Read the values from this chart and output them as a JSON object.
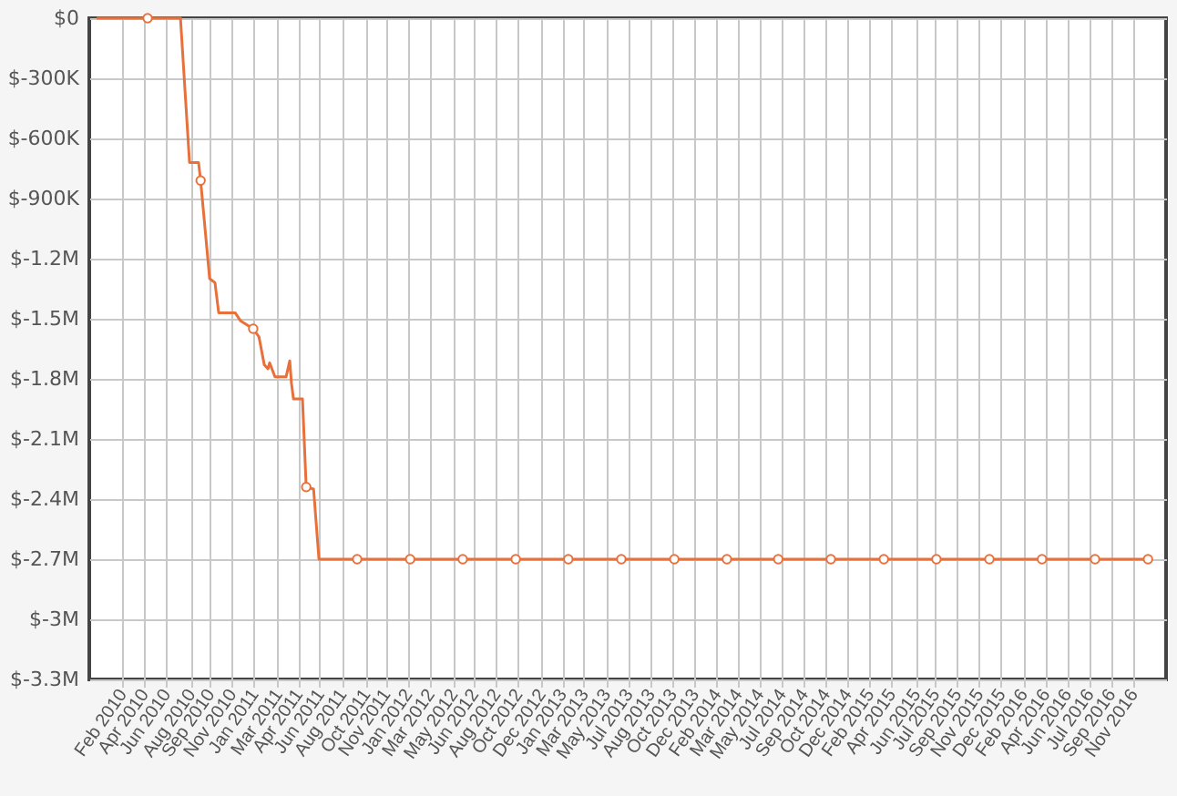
{
  "chart_data": {
    "type": "line",
    "xlim": [
      "2009-11-27",
      "2017-01-30"
    ],
    "xticks": [
      {
        "value": "2010-02-15",
        "label": "Feb 2010"
      },
      {
        "value": "2010-04-09",
        "label": "Apr 2010"
      },
      {
        "value": "2010-06-02",
        "label": "Jun 2010"
      },
      {
        "value": "2010-08-01",
        "label": "Aug 2010"
      },
      {
        "value": "2010-09-17",
        "label": "Sep 2010"
      },
      {
        "value": "2010-11-09",
        "label": "Nov 2010"
      },
      {
        "value": "2011-01-02",
        "label": "Jan 2011"
      },
      {
        "value": "2011-03-01",
        "label": "Mar 2011"
      },
      {
        "value": "2011-04-19",
        "label": "Apr 2011"
      },
      {
        "value": "2011-06-11",
        "label": "Jun 2011"
      },
      {
        "value": "2011-08-04",
        "label": "Aug 2011"
      },
      {
        "value": "2011-10-01",
        "label": "Oct 2011"
      },
      {
        "value": "2011-11-19",
        "label": "Nov 2011"
      },
      {
        "value": "2012-01-11",
        "label": "Jan 2012"
      },
      {
        "value": "2012-03-05",
        "label": "Mar 2012"
      },
      {
        "value": "2012-05-01",
        "label": "May 2012"
      },
      {
        "value": "2012-06-20",
        "label": "Jun 2012"
      },
      {
        "value": "2012-08-13",
        "label": "Aug 2012"
      },
      {
        "value": "2012-10-05",
        "label": "Oct 2012"
      },
      {
        "value": "2012-12-01",
        "label": "Dec 2012"
      },
      {
        "value": "2013-01-21",
        "label": "Jan 2013"
      },
      {
        "value": "2013-03-15",
        "label": "Mar 2013"
      },
      {
        "value": "2013-05-08",
        "label": "May 2013"
      },
      {
        "value": "2013-07-01",
        "label": "Jul 2013"
      },
      {
        "value": "2013-08-24",
        "label": "Aug 2013"
      },
      {
        "value": "2013-10-16",
        "label": "Oct 2013"
      },
      {
        "value": "2013-12-09",
        "label": "Dec 2013"
      },
      {
        "value": "2014-02-01",
        "label": "Feb 2014"
      },
      {
        "value": "2014-03-24",
        "label": "Mar 2014"
      },
      {
        "value": "2014-05-16",
        "label": "May 2014"
      },
      {
        "value": "2014-07-09",
        "label": "Jul 2014"
      },
      {
        "value": "2014-09-01",
        "label": "Sep 2014"
      },
      {
        "value": "2014-10-24",
        "label": "Oct 2014"
      },
      {
        "value": "2014-12-16",
        "label": "Dec 2014"
      },
      {
        "value": "2015-02-08",
        "label": "Feb 2015"
      },
      {
        "value": "2015-04-02",
        "label": "Apr 2015"
      },
      {
        "value": "2015-06-01",
        "label": "Jun 2015"
      },
      {
        "value": "2015-07-18",
        "label": "Jul 2015"
      },
      {
        "value": "2015-09-09",
        "label": "Sep 2015"
      },
      {
        "value": "2015-11-01",
        "label": "Nov 2015"
      },
      {
        "value": "2015-12-25",
        "label": "Dec 2015"
      },
      {
        "value": "2016-02-17",
        "label": "Feb 2016"
      },
      {
        "value": "2016-04-11",
        "label": "Apr 2016"
      },
      {
        "value": "2016-06-03",
        "label": "Jun 2016"
      },
      {
        "value": "2016-07-27",
        "label": "Jul 2016"
      },
      {
        "value": "2016-09-18",
        "label": "Sep 2016"
      },
      {
        "value": "2016-11-11",
        "label": "Nov 2016"
      }
    ],
    "ylim": [
      -3300000,
      0
    ],
    "yticks": [
      {
        "value": 0,
        "label": "$0"
      },
      {
        "value": -300000,
        "label": "$-300K"
      },
      {
        "value": -600000,
        "label": "$-600K"
      },
      {
        "value": -900000,
        "label": "$-900K"
      },
      {
        "value": -1200000,
        "label": "$-1.2M"
      },
      {
        "value": -1500000,
        "label": "$-1.5M"
      },
      {
        "value": -1800000,
        "label": "$-1.8M"
      },
      {
        "value": -2100000,
        "label": "$-2.1M"
      },
      {
        "value": -2400000,
        "label": "$-2.4M"
      },
      {
        "value": -2700000,
        "label": "$-2.7M"
      },
      {
        "value": -3000000,
        "label": "$-3M"
      },
      {
        "value": -3300000,
        "label": "$-3.3M"
      }
    ],
    "grid": true,
    "series": [
      {
        "color": "#e8703a",
        "marker": "none",
        "x": [
          "2009-12-15",
          "2010-07-07",
          "2010-07-29",
          "2010-08-20",
          "2010-08-25",
          "2010-09-16",
          "2010-09-29",
          "2010-10-08",
          "2010-11-17",
          "2010-11-30",
          "2010-12-31",
          "2011-01-14",
          "2011-01-27",
          "2011-02-05",
          "2011-02-09",
          "2011-02-22",
          "2011-03-21",
          "2011-03-30",
          "2011-04-03",
          "2011-04-08",
          "2011-04-30",
          "2011-05-09",
          "2011-05-27",
          "2011-06-09",
          "2016-12-17"
        ],
        "values": [
          0,
          0,
          -720000,
          -720000,
          -810000,
          -1300000,
          -1320000,
          -1470000,
          -1470000,
          -1510000,
          -1550000,
          -1590000,
          -1730000,
          -1750000,
          -1720000,
          -1790000,
          -1790000,
          -1710000,
          -1820000,
          -1900000,
          -1900000,
          -2340000,
          -2350000,
          -2700000,
          -2700000
        ]
      },
      {
        "type": "scatter",
        "color": "#e8703a",
        "marker": "circle",
        "x": [
          "2010-04-18",
          "2010-08-25",
          "2010-12-31",
          "2011-05-09",
          "2011-09-10",
          "2012-01-17",
          "2012-05-24",
          "2012-09-30",
          "2013-02-05",
          "2013-06-14",
          "2013-10-21",
          "2014-02-26",
          "2014-07-01",
          "2014-11-06",
          "2015-03-15",
          "2015-07-21",
          "2015-11-27",
          "2016-04-03",
          "2016-08-10",
          "2016-12-17"
        ],
        "values": [
          0,
          -810000,
          -1550000,
          -2340000,
          -2700000,
          -2700000,
          -2700000,
          -2700000,
          -2700000,
          -2700000,
          -2700000,
          -2700000,
          -2700000,
          -2700000,
          -2700000,
          -2700000,
          -2700000,
          -2700000,
          -2700000,
          -2700000
        ]
      }
    ]
  }
}
